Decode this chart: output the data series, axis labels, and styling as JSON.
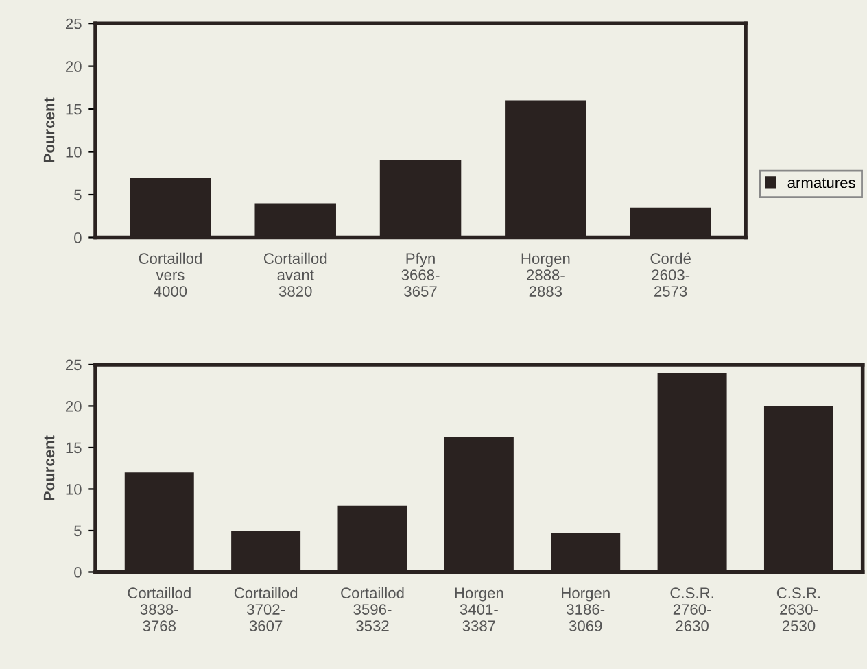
{
  "chart_data": [
    {
      "type": "bar",
      "ylabel": "Pourcent",
      "categories": [
        "Cortaillod\nvers\n4000",
        "Cortaillod\navant\n3820",
        "Pfyn\n3668-\n3657",
        "Horgen\n2888-\n2883",
        "Cordé\n2603-\n2573"
      ],
      "series": [
        {
          "name": "armatures",
          "color": "#2a2220",
          "values": [
            7,
            4,
            9,
            16,
            3.5
          ]
        }
      ],
      "ylim": [
        0,
        25
      ],
      "yticks": [
        0,
        5,
        10,
        15,
        20,
        25
      ],
      "legend": "right"
    },
    {
      "type": "bar",
      "ylabel": "Pourcent",
      "categories": [
        "Cortaillod\n3838-\n3768",
        "Cortaillod\n3702-\n3607",
        "Cortaillod\n3596-\n3532",
        "Horgen\n3401-\n3387",
        "Horgen\n3186-\n3069",
        "C.S.R.\n2760-\n2630",
        "C.S.R.\n2630-\n2530"
      ],
      "series": [
        {
          "color": "#2a2220",
          "values": [
            12,
            5,
            8,
            16.3,
            4.7,
            24,
            20
          ]
        }
      ],
      "ylim": [
        0,
        25
      ],
      "yticks": [
        0,
        5,
        10,
        15,
        20,
        25
      ]
    }
  ]
}
